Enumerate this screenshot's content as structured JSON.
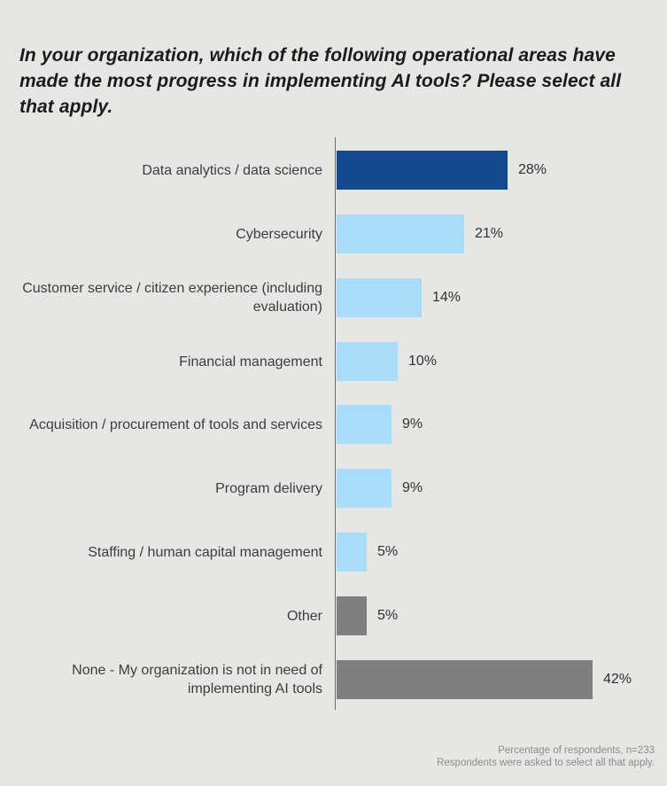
{
  "title": "In your organization, which of the following operational areas have made the most progress in implementing AI tools? Please select all that apply.",
  "footnote": {
    "line1": "Percentage of respondents, n=233",
    "line2": "Respondents were asked to select all that apply."
  },
  "colors": {
    "background": "#e6e6e5",
    "highlight_bar": "#15498e",
    "default_bar": "#a8dcf8",
    "neutral_bar": "#7f7f7f",
    "axis": "#6a6a6a",
    "title_text": "#1b1b1e",
    "label_text": "#3d3d3d",
    "footnote_text": "#8c8c8c"
  },
  "chart_data": {
    "type": "bar",
    "orientation": "horizontal",
    "title": "In your organization, which of the following operational areas have made the most progress in implementing AI tools? Please select all that apply.",
    "xlabel": "",
    "ylabel": "",
    "xlim": [
      0,
      44
    ],
    "grid": false,
    "legend": false,
    "value_suffix": "%",
    "categories": [
      "Data analytics / data science",
      "Cybersecurity",
      "Customer service / citizen experience (including evaluation)",
      "Financial management",
      "Acquisition / procurement of tools and services",
      "Program delivery",
      "Staffing / human capital management",
      "Other",
      "None - My organization is not in need of implementing AI tools"
    ],
    "values": [
      28,
      21,
      14,
      10,
      9,
      9,
      5,
      5,
      42
    ],
    "value_labels": [
      "28%",
      "21%",
      "14%",
      "10%",
      "9%",
      "9%",
      "5%",
      "5%",
      "42%"
    ],
    "bar_colors": [
      "#15498e",
      "#a8dcf8",
      "#a8dcf8",
      "#a8dcf8",
      "#a8dcf8",
      "#a8dcf8",
      "#a8dcf8",
      "#7f7f7f",
      "#7f7f7f"
    ]
  }
}
